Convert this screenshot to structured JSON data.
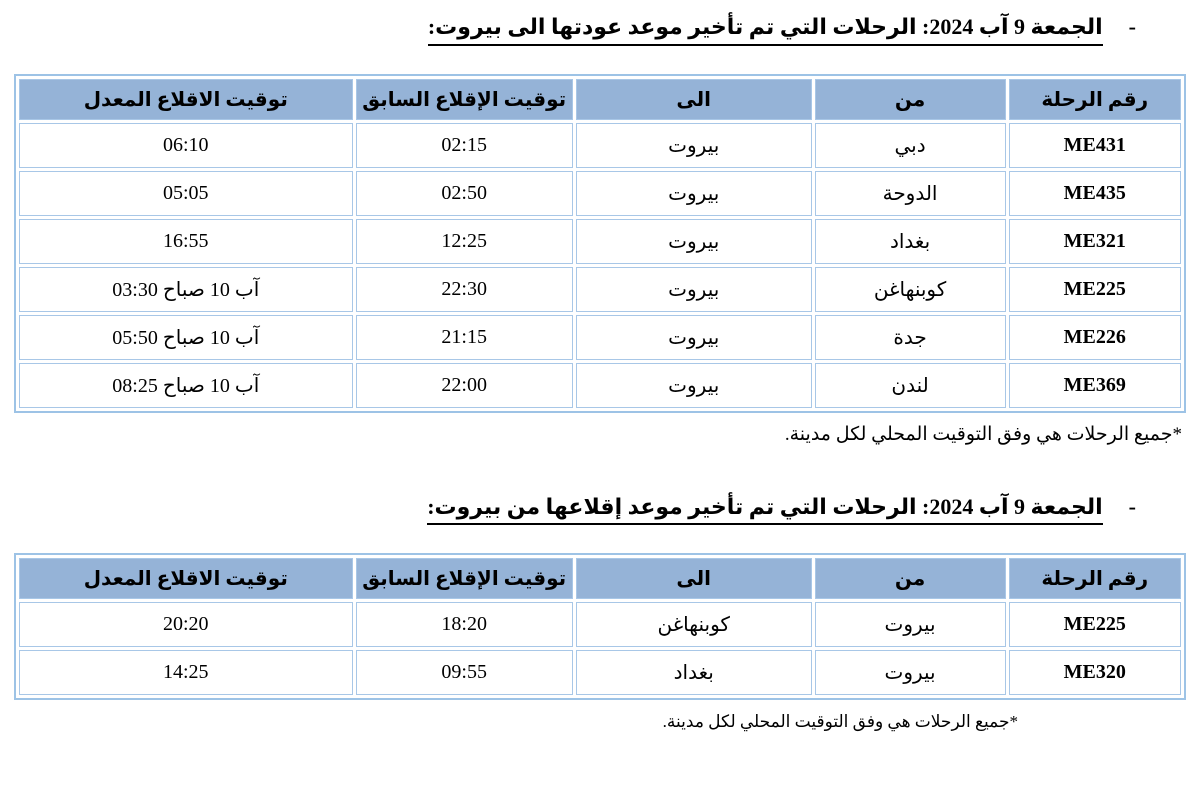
{
  "colors": {
    "header_fill": "#95B3D7",
    "grid_border": "#9DC3E6",
    "text": "#000000"
  },
  "sections": [
    {
      "heading": {
        "bullet": "-",
        "text": "الجمعة 9 آب 2024: الرحلات التي تم تأخير موعد عودتها الى بيروت:"
      },
      "table": {
        "columns": [
          "رقم الرحلة",
          "من",
          "الى",
          "توقيت الإقلاع السابق",
          "توقيت الاقلاع المعدل"
        ],
        "rows": [
          {
            "flight": "ME431",
            "from": "دبي",
            "to": "بيروت",
            "previous": "02:15",
            "modified": "06:10"
          },
          {
            "flight": "ME435",
            "from": "الدوحة",
            "to": "بيروت",
            "previous": "02:50",
            "modified": "05:05"
          },
          {
            "flight": "ME321",
            "from": "بغداد",
            "to": "بيروت",
            "previous": "12:25",
            "modified": "16:55"
          },
          {
            "flight": "ME225",
            "from": "كوبنهاغن",
            "to": "بيروت",
            "previous": "22:30",
            "modified": "آب 10 صباح 03:30"
          },
          {
            "flight": "ME226",
            "from": "جدة",
            "to": "بيروت",
            "previous": "21:15",
            "modified": "آب 10 صباح 05:50"
          },
          {
            "flight": "ME369",
            "from": "لندن",
            "to": "بيروت",
            "previous": "22:00",
            "modified": "آب 10 صباح 08:25"
          }
        ]
      },
      "footnote": "*جميع الرحلات هي وفق التوقيت المحلي لكل مدينة."
    },
    {
      "heading": {
        "bullet": "-",
        "text": "الجمعة 9 آب 2024: الرحلات التي تم تأخير موعد إقلاعها من بيروت:"
      },
      "table": {
        "columns": [
          "رقم الرحلة",
          "من",
          "الى",
          "توقيت الإقلاع السابق",
          "توقيت الاقلاع المعدل"
        ],
        "rows": [
          {
            "flight": "ME225",
            "from": "بيروت",
            "to": "كوبنهاغن",
            "previous": "18:20",
            "modified": "20:20"
          },
          {
            "flight": "ME320",
            "from": "بيروت",
            "to": "بغداد",
            "previous": "09:55",
            "modified": "14:25"
          }
        ]
      },
      "footnote": "*جميع الرحلات هي وفق التوقيت المحلي لكل مدينة."
    }
  ]
}
